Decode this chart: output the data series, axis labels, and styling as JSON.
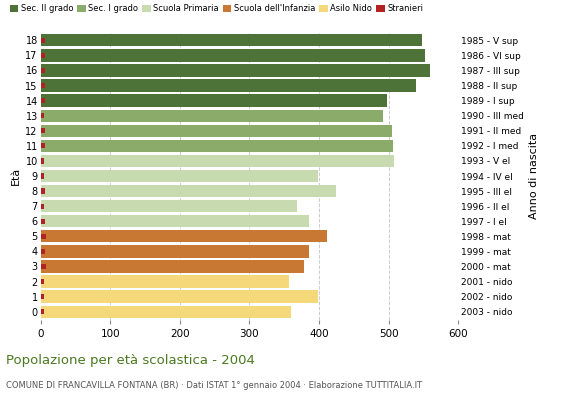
{
  "ages": [
    18,
    17,
    16,
    15,
    14,
    13,
    12,
    11,
    10,
    9,
    8,
    7,
    6,
    5,
    4,
    3,
    2,
    1,
    0
  ],
  "anno_nascita": [
    "1985 - V sup",
    "1986 - VI sup",
    "1987 - III sup",
    "1988 - II sup",
    "1989 - I sup",
    "1990 - III med",
    "1991 - II med",
    "1992 - I med",
    "1993 - V el",
    "1994 - IV el",
    "1995 - III el",
    "1996 - II el",
    "1997 - I el",
    "1998 - mat",
    "1999 - mat",
    "2000 - mat",
    "2001 - nido",
    "2002 - nido",
    "2003 - nido"
  ],
  "bar_values": [
    548,
    552,
    560,
    540,
    497,
    492,
    505,
    507,
    508,
    398,
    425,
    368,
    385,
    412,
    385,
    378,
    357,
    398,
    360
  ],
  "stranieri": [
    7,
    7,
    7,
    7,
    7,
    5,
    7,
    7,
    5,
    5,
    7,
    5,
    7,
    8,
    7,
    8,
    5,
    5,
    5
  ],
  "colors": {
    "sec2": "#4e7339",
    "sec1": "#8aab6a",
    "primaria": "#c8dbb0",
    "infanzia": "#c87832",
    "nido": "#f5d87a",
    "stranieri": "#b22222"
  },
  "legend_labels": [
    "Sec. II grado",
    "Sec. I grado",
    "Scuola Primaria",
    "Scuola dell'Infanzia",
    "Asilo Nido",
    "Stranieri"
  ],
  "title": "Popolazione per età scolastica - 2004",
  "subtitle": "COMUNE DI FRANCAVILLA FONTANA (BR) · Dati ISTAT 1° gennaio 2004 · Elaborazione TUTTITALIA.IT",
  "ylabel_left": "Età",
  "ylabel_right": "Anno di nascita",
  "xlim": [
    0,
    600
  ],
  "xticks": [
    0,
    100,
    200,
    300,
    400,
    500,
    600
  ],
  "background_color": "#ffffff",
  "bar_height": 0.82,
  "title_color": "#4a7a20",
  "subtitle_color": "#555555"
}
